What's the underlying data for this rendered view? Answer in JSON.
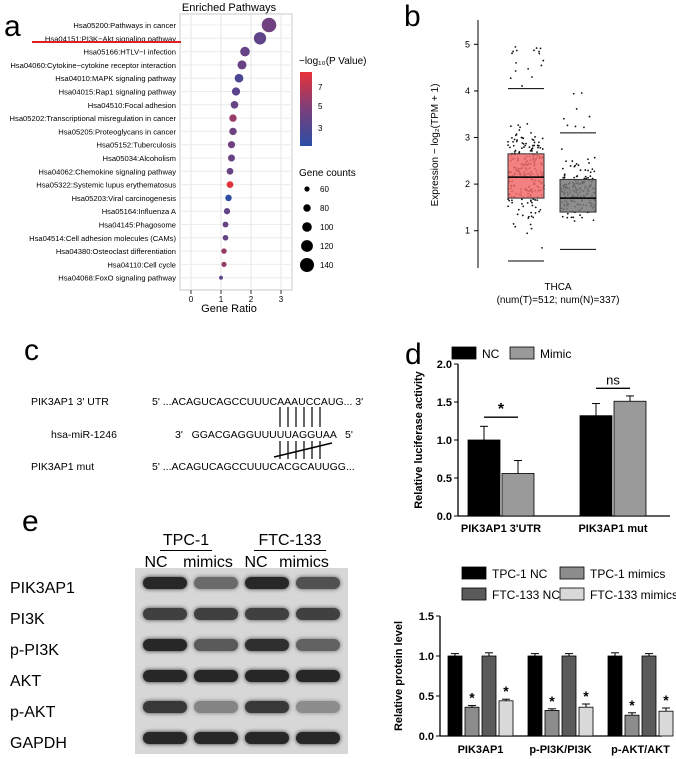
{
  "panels": {
    "a": "a",
    "b": "b",
    "c": "c",
    "d": "d",
    "e": "e"
  },
  "a": {
    "title": "Enriched Pathways",
    "xlabel": "Gene Ratio",
    "legend_pvalue_title": "−log₁₀(P Value)",
    "legend_size_title": "Gene counts",
    "pathways": [
      "Hsa05200:Pathways in cancer",
      "Hsa04151:PI3K−Akt signaling pathway",
      "Hsa05166:HTLV−I infection",
      "Hsa04060:Cytokine−cytokine receptor interaction",
      "Hsa04010:MAPK signaling pathway",
      "Hsa04015:Rap1 signaling pathway",
      "Hsa04510:Focal adhesion",
      "Hsa05202:Transcriptional misregulation in cancer",
      "Hsa05205:Proteoglycans in cancer",
      "Hsa05152:Tuberculosis",
      "Hsa05034:Alcoholism",
      "Hsa04062:Chemokine signaling pathway",
      "Hsa05322:Systemic lupus erythematosus",
      "Hsa05203:Viral carcinogenesis",
      "Hsa05164:Influenza A",
      "Hsa04145:Phagosome",
      "Hsa04514:Cell adhesion molecules (CAMs)",
      "Hsa04380:Osteoclast differentiation",
      "Hsa04110:Cell cycle",
      "Hsa04068:FoxO signaling pathway"
    ],
    "gene_ratio": [
      2.6,
      2.3,
      1.8,
      1.7,
      1.6,
      1.5,
      1.45,
      1.4,
      1.4,
      1.35,
      1.35,
      1.3,
      1.3,
      1.25,
      1.2,
      1.15,
      1.15,
      1.1,
      1.1,
      1.0
    ],
    "gene_count": [
      145,
      125,
      100,
      95,
      92,
      88,
      82,
      80,
      80,
      78,
      76,
      74,
      74,
      72,
      70,
      66,
      64,
      62,
      60,
      48
    ],
    "neglog10p": [
      4.6,
      4.0,
      4.2,
      4.3,
      3.2,
      3.8,
      4.2,
      5.8,
      4.5,
      4.6,
      4.3,
      4.3,
      7.8,
      2.2,
      4.0,
      4.3,
      4.2,
      5.8,
      5.8,
      3.8
    ],
    "x_ticks": [
      "0",
      "1",
      "2",
      "3"
    ],
    "color_ticks": [
      "7",
      "5",
      "3"
    ],
    "size_ticks": [
      "60",
      "80",
      "100",
      "120",
      "140"
    ],
    "size_values": [
      60,
      80,
      100,
      120,
      140
    ]
  },
  "b": {
    "ylabel": "Expression − log₂(TPM + 1)",
    "y_ticks": [
      "1",
      "2",
      "3",
      "4",
      "5"
    ],
    "xlabel": "THCA",
    "xsub": "(num(T)=512; num(N)=337)",
    "tumor": {
      "q1": 1.7,
      "median": 2.15,
      "q3": 2.65,
      "whisker_low": 0.35,
      "whisker_high": 4.05,
      "color": "#f26b6b"
    },
    "normal": {
      "q1": 1.4,
      "median": 1.7,
      "q3": 2.1,
      "whisker_low": 0.6,
      "whisker_high": 3.1,
      "color": "#7a7a7a"
    }
  },
  "c": {
    "row1_label": "PIK3AP1 3' UTR",
    "row1_seq": "5' ...ACAGUCAGCCUUUCAAAUCCAUG... 3'",
    "row2_label": "hsa-miR-1246",
    "row2_seq": "3'   GGACGAGGUUUUUAGGUAA   5'",
    "row3_label": "PIK3AP1 mut",
    "row3_seq": "5' ...ACAGUCAGCCUUUCACGCAUUGG..."
  },
  "chart_data": [
    {
      "type": "bar",
      "ylabel": "Relative luciferase activity",
      "categories": [
        "PIK3AP1 3'UTR",
        "PIK3AP1 mut"
      ],
      "series": [
        {
          "name": "NC",
          "values": [
            1.0,
            1.32
          ],
          "errors": [
            0.18,
            0.16
          ],
          "color": "#000000"
        },
        {
          "name": "Mimic",
          "values": [
            0.56,
            1.51
          ],
          "errors": [
            0.17,
            0.07
          ],
          "color": "#9a9a9a"
        }
      ],
      "ylim": [
        0.0,
        2.0
      ],
      "y_ticks": [
        "0.0",
        "0.5",
        "1.0",
        "1.5",
        "2.0"
      ],
      "annotations": [
        "*",
        "ns"
      ]
    },
    {
      "type": "bar",
      "ylabel": "Relative protein level",
      "categories": [
        "PIK3AP1",
        "p-PI3K/PI3K",
        "p-AKT/AKT"
      ],
      "series": [
        {
          "name": "TPC-1 NC",
          "values": [
            1.0,
            1.0,
            1.0
          ],
          "errors": [
            0.03,
            0.03,
            0.04
          ],
          "color": "#000000"
        },
        {
          "name": "TPC-1 mimics",
          "values": [
            0.36,
            0.32,
            0.26
          ],
          "errors": [
            0.02,
            0.02,
            0.03
          ],
          "color": "#8c8c8c"
        },
        {
          "name": "FTC-133 NC",
          "values": [
            1.0,
            1.0,
            1.0
          ],
          "errors": [
            0.04,
            0.03,
            0.03
          ],
          "color": "#5a5a5a"
        },
        {
          "name": "FTC-133 mimics",
          "values": [
            0.44,
            0.36,
            0.31
          ],
          "errors": [
            0.02,
            0.04,
            0.04
          ],
          "color": "#d9d9d9"
        }
      ],
      "ylim": [
        0.0,
        1.5
      ],
      "y_ticks": [
        "0.0",
        "0.5",
        "1.0",
        "1.5"
      ],
      "annotations": [
        "*",
        "*",
        "*",
        "*",
        "*",
        "*"
      ]
    }
  ],
  "e": {
    "group1": "TPC-1",
    "group2": "FTC-133",
    "lanes": [
      "NC",
      "mimics",
      "NC",
      "mimics"
    ],
    "proteins": [
      "PIK3AP1",
      "PI3K",
      "p-PI3K",
      "AKT",
      "p-AKT",
      "GAPDH"
    ],
    "intensity": [
      [
        0.95,
        0.55,
        0.95,
        0.7
      ],
      [
        0.8,
        0.8,
        0.8,
        0.8
      ],
      [
        0.95,
        0.65,
        0.9,
        0.6
      ],
      [
        0.95,
        0.95,
        0.95,
        0.95
      ],
      [
        0.85,
        0.4,
        0.85,
        0.35
      ],
      [
        0.95,
        0.95,
        0.95,
        0.95
      ]
    ]
  }
}
